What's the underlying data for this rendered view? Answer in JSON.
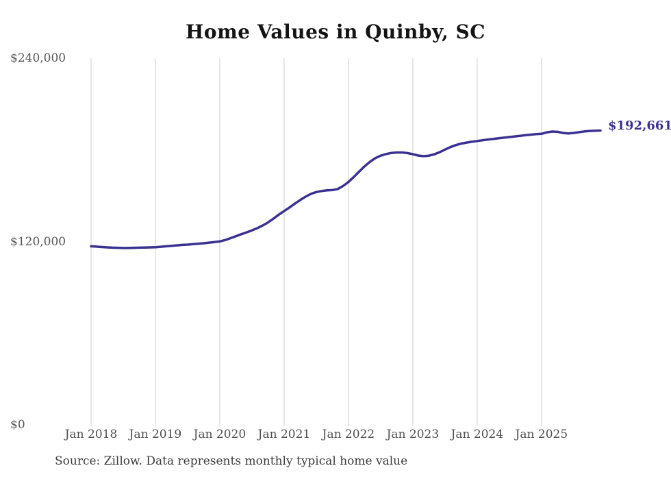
{
  "chart_data": {
    "type": "line",
    "title": "Home Values in Quinby, SC",
    "source": "Source: Zillow. Data represents monthly typical home value",
    "end_label": "$192,661",
    "series_name": "Typical home value",
    "frequency": "monthly",
    "x_start": "Jan 2018",
    "x_end": "Dec 2025",
    "x_tick_labels": [
      "Jan 2018",
      "Jan 2019",
      "Jan 2020",
      "Jan 2021",
      "Jan 2022",
      "Jan 2023",
      "Jan 2024",
      "Jan 2025"
    ],
    "y_ticks": [
      {
        "label": "$0",
        "value": 0
      },
      {
        "label": "$120,000",
        "value": 120000
      },
      {
        "label": "$240,000",
        "value": 240000
      }
    ],
    "ylim": [
      0,
      240000
    ],
    "grid": "vertical-only",
    "line_color": "#3a3191",
    "grid_color": "#cdcdcd",
    "values": [
      116900,
      116700,
      116400,
      116200,
      116000,
      115900,
      115800,
      115800,
      115900,
      116000,
      116100,
      116200,
      116300,
      116600,
      116900,
      117200,
      117500,
      117800,
      118000,
      118300,
      118600,
      118900,
      119300,
      119700,
      120100,
      121000,
      122200,
      123500,
      124800,
      126000,
      127300,
      128800,
      130500,
      132500,
      135000,
      137600,
      140000,
      142300,
      144800,
      147200,
      149400,
      151200,
      152400,
      153100,
      153500,
      153700,
      154400,
      156400,
      159000,
      162300,
      165800,
      169200,
      172200,
      174600,
      176200,
      177300,
      178000,
      178300,
      178300,
      177900,
      177200,
      176300,
      175900,
      176200,
      177100,
      178500,
      180200,
      181800,
      183100,
      184100,
      184800,
      185300,
      185800,
      186300,
      186800,
      187200,
      187600,
      188000,
      188400,
      188800,
      189200,
      189600,
      190000,
      190300,
      190500,
      191500,
      192000,
      191800,
      191100,
      190800,
      191100,
      191600,
      192100,
      192400,
      192550,
      192661
    ]
  }
}
